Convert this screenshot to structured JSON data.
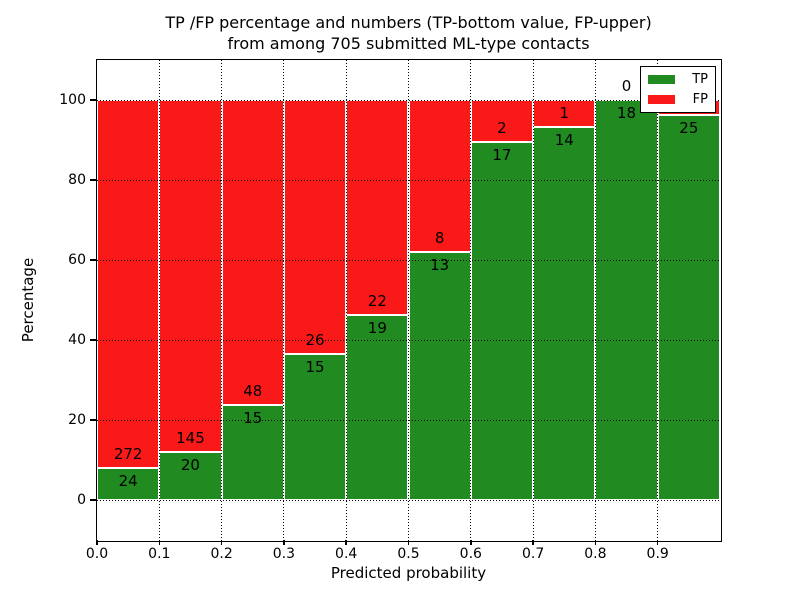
{
  "title": {
    "line1": "TP /FP percentage and numbers (TP-bottom value, FP-upper)",
    "line2": "from among 705 submitted ML-type contacts"
  },
  "chart_data": {
    "type": "bar",
    "subtype": "stacked-percentage-histogram",
    "title": "TP /FP percentage and numbers (TP-bottom value, FP-upper) from among 705 submitted ML-type contacts",
    "total_contacts": 705,
    "xlabel": "Predicted probability",
    "ylabel": "Percentage",
    "xlim": [
      0.0,
      1.0
    ],
    "ylim": [
      -10,
      110
    ],
    "bins": {
      "start": 0.0,
      "width": 0.1,
      "count": 10
    },
    "categories": [
      "0.0-0.1",
      "0.1-0.2",
      "0.2-0.3",
      "0.3-0.4",
      "0.4-0.5",
      "0.5-0.6",
      "0.6-0.7",
      "0.7-0.8",
      "0.8-0.9",
      "0.9-1.0"
    ],
    "series": [
      {
        "name": "TP",
        "position": "bottom",
        "color": "#218a21",
        "counts": [
          24,
          20,
          15,
          15,
          19,
          13,
          17,
          14,
          18,
          25
        ]
      },
      {
        "name": "FP",
        "position": "top",
        "color": "#fa1919",
        "counts": [
          272,
          145,
          48,
          26,
          22,
          8,
          2,
          1,
          0,
          1
        ]
      }
    ],
    "bar_total_height_percent": 100,
    "xticks": [
      "0.0",
      "0.1",
      "0.2",
      "0.3",
      "0.4",
      "0.5",
      "0.6",
      "0.7",
      "0.8",
      "0.9"
    ],
    "yticks": [
      "0",
      "20",
      "40",
      "60",
      "80",
      "100"
    ],
    "grid": {
      "style": "dotted",
      "color": "#000000"
    },
    "legend": {
      "position": "upper right",
      "entries": [
        {
          "label": "TP",
          "color": "#218a21"
        },
        {
          "label": "FP",
          "color": "#fa1919"
        }
      ]
    },
    "notes": "Count label of the FP segment in the last bin (value 1) is hidden behind the legend box",
    "colors": {
      "tp_green": "#218a21",
      "fp_red": "#fa1919",
      "background": "#ffffff",
      "text": "#000000"
    }
  }
}
